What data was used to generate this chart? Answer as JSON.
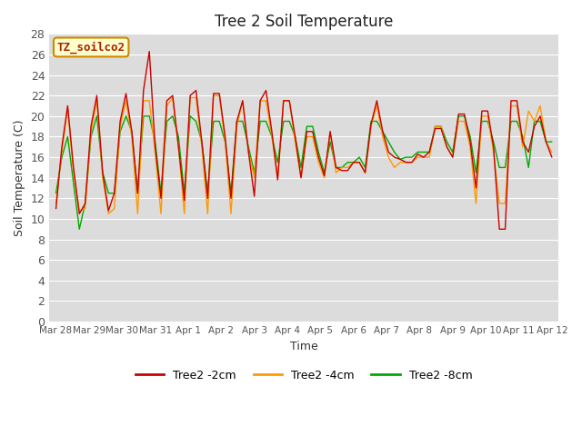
{
  "title": "Tree 2 Soil Temperature",
  "xlabel": "Time",
  "ylabel": "Soil Temperature (C)",
  "ylim": [
    0,
    28
  ],
  "yticks": [
    0,
    2,
    4,
    6,
    8,
    10,
    12,
    14,
    16,
    18,
    20,
    22,
    24,
    26,
    28
  ],
  "bg_color": "#dcdcdc",
  "legend_labels": [
    "Tree2 -2cm",
    "Tree2 -4cm",
    "Tree2 -8cm"
  ],
  "line_colors": [
    "#cc0000",
    "#ff9900",
    "#00aa00"
  ],
  "watermark_text": "TZ_soilco2",
  "x_labels": [
    "Mar 28",
    "Mar 29",
    "Mar 30",
    "Mar 31",
    "Apr 1",
    "Apr 2",
    "Apr 3",
    "Apr 4",
    "Apr 5",
    "Apr 6",
    "Apr 7",
    "Apr 8",
    "Apr 9",
    "Apr 10",
    "Apr 11",
    "Apr 12"
  ],
  "n_days": 15,
  "tree2_2cm": [
    11.0,
    17.0,
    21.0,
    15.0,
    10.5,
    11.5,
    19.0,
    22.0,
    14.5,
    10.8,
    12.5,
    19.5,
    22.2,
    18.5,
    12.5,
    22.5,
    26.3,
    17.0,
    12.0,
    21.5,
    22.0,
    17.0,
    11.8,
    22.0,
    22.5,
    17.5,
    12.0,
    22.2,
    22.2,
    18.0,
    12.0,
    19.5,
    21.5,
    16.5,
    12.2,
    21.5,
    22.5,
    18.5,
    13.8,
    21.5,
    21.5,
    18.0,
    14.0,
    18.5,
    18.5,
    16.0,
    14.2,
    18.5,
    15.0,
    14.7,
    14.7,
    15.5,
    15.5,
    14.5,
    19.2,
    21.5,
    18.5,
    16.5,
    16.0,
    15.8,
    15.5,
    15.5,
    16.3,
    16.0,
    16.5,
    18.8,
    18.8,
    17.0,
    16.0,
    20.2,
    20.2,
    17.5,
    13.0,
    20.5,
    20.5,
    17.0,
    9.0,
    9.0,
    21.5,
    21.5,
    17.5,
    16.5,
    19.0,
    20.0,
    17.5,
    16.0
  ],
  "tree2_4cm": [
    11.5,
    16.5,
    20.8,
    14.5,
    10.8,
    11.0,
    18.5,
    21.5,
    14.0,
    10.5,
    11.0,
    19.0,
    21.5,
    18.0,
    10.5,
    21.5,
    21.5,
    16.5,
    10.5,
    21.0,
    21.8,
    17.0,
    10.5,
    21.8,
    21.8,
    17.0,
    10.5,
    22.0,
    22.0,
    17.5,
    10.5,
    19.0,
    21.5,
    16.5,
    14.0,
    21.5,
    21.5,
    18.0,
    14.0,
    21.5,
    21.5,
    17.5,
    14.0,
    18.0,
    18.0,
    15.5,
    14.0,
    18.5,
    14.5,
    15.0,
    15.0,
    15.5,
    15.5,
    14.5,
    19.0,
    21.0,
    18.0,
    16.0,
    15.0,
    15.5,
    15.5,
    15.5,
    16.0,
    16.0,
    16.0,
    19.0,
    19.0,
    17.0,
    16.0,
    19.5,
    19.5,
    17.0,
    11.5,
    20.0,
    20.0,
    16.5,
    11.5,
    11.5,
    21.0,
    21.0,
    17.0,
    20.5,
    19.5,
    21.0,
    17.5,
    16.5
  ],
  "tree2_8cm": [
    12.5,
    16.0,
    18.0,
    13.5,
    9.0,
    11.5,
    18.0,
    20.0,
    14.5,
    12.5,
    12.5,
    18.5,
    20.0,
    18.5,
    12.5,
    20.0,
    20.0,
    17.5,
    12.5,
    19.5,
    20.0,
    18.0,
    12.5,
    20.0,
    19.5,
    17.5,
    12.5,
    19.5,
    19.5,
    17.5,
    12.5,
    19.5,
    19.5,
    17.0,
    14.5,
    19.5,
    19.5,
    18.0,
    15.5,
    19.5,
    19.5,
    18.0,
    15.0,
    19.0,
    19.0,
    16.5,
    14.5,
    17.5,
    15.0,
    15.0,
    15.5,
    15.5,
    16.0,
    15.0,
    19.5,
    19.5,
    18.5,
    17.5,
    16.5,
    15.8,
    16.0,
    16.0,
    16.5,
    16.5,
    16.5,
    19.0,
    19.0,
    17.5,
    16.5,
    20.0,
    20.0,
    18.0,
    14.5,
    19.5,
    19.5,
    17.5,
    15.0,
    15.0,
    19.5,
    19.5,
    18.0,
    15.0,
    19.5,
    19.5,
    17.5,
    17.5
  ]
}
